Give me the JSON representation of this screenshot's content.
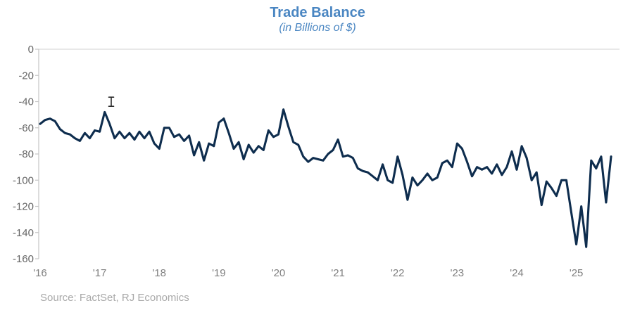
{
  "header": {
    "title": "Trade Balance",
    "subtitle": "(in Billions of $)"
  },
  "footer": {
    "source": "Source: FactSet, RJ Economics"
  },
  "chart_data": {
    "type": "line",
    "title": "Trade Balance",
    "subtitle": "(in Billions of $)",
    "ylabel": "",
    "xlabel": "",
    "unit": "Billions of $",
    "x_start": "2016-01",
    "x_end": "2025-08",
    "x_frequency": "monthly",
    "x_tick_labels": [
      "'16",
      "'17",
      "'18",
      "'19",
      "'20",
      "'21",
      "'22",
      "'23",
      "'24",
      "'25"
    ],
    "x_tick_indices": [
      0,
      12,
      24,
      36,
      48,
      60,
      72,
      84,
      96,
      108
    ],
    "y_ticks": [
      0,
      -20,
      -40,
      -60,
      -80,
      -100,
      -120,
      -140,
      -160
    ],
    "ylim": [
      0,
      -160
    ],
    "grid": "single horizontal gridline at 0 only",
    "legend": "none",
    "line_color": "#0e2d4e",
    "title_color": "#4a86c2",
    "axis_label_color": "#666666",
    "series": [
      {
        "name": "Trade Balance",
        "values": [
          -57,
          -54,
          -53,
          -55,
          -61,
          -64,
          -65,
          -68,
          -70,
          -64,
          -68,
          -62,
          -63,
          -48,
          -57,
          -68,
          -63,
          -68,
          -64,
          -69,
          -63,
          -68,
          -63,
          -72,
          -76,
          -60,
          -60,
          -67,
          -65,
          -70,
          -66,
          -81,
          -71,
          -85,
          -72,
          -74,
          -56,
          -53,
          -64,
          -76,
          -71,
          -84,
          -73,
          -79,
          -74,
          -77,
          -62,
          -67,
          -65,
          -46,
          -59,
          -71,
          -73,
          -82,
          -86,
          -83,
          -84,
          -85,
          -80,
          -77,
          -69,
          -82,
          -81,
          -83,
          -91,
          -93,
          -94,
          -97,
          -100,
          -88,
          -100,
          -102,
          -82,
          -96,
          -115,
          -98,
          -104,
          -100,
          -95,
          -100,
          -98,
          -87,
          -85,
          -90,
          -72,
          -76,
          -86,
          -97,
          -90,
          -92,
          -90,
          -95,
          -88,
          -96,
          -90,
          -78,
          -92,
          -74,
          -83,
          -100,
          -94,
          -119,
          -101,
          -106,
          -112,
          -100,
          -100,
          -125,
          -149,
          -120,
          -151,
          -85,
          -91,
          -82,
          -117,
          -82
        ]
      }
    ]
  }
}
